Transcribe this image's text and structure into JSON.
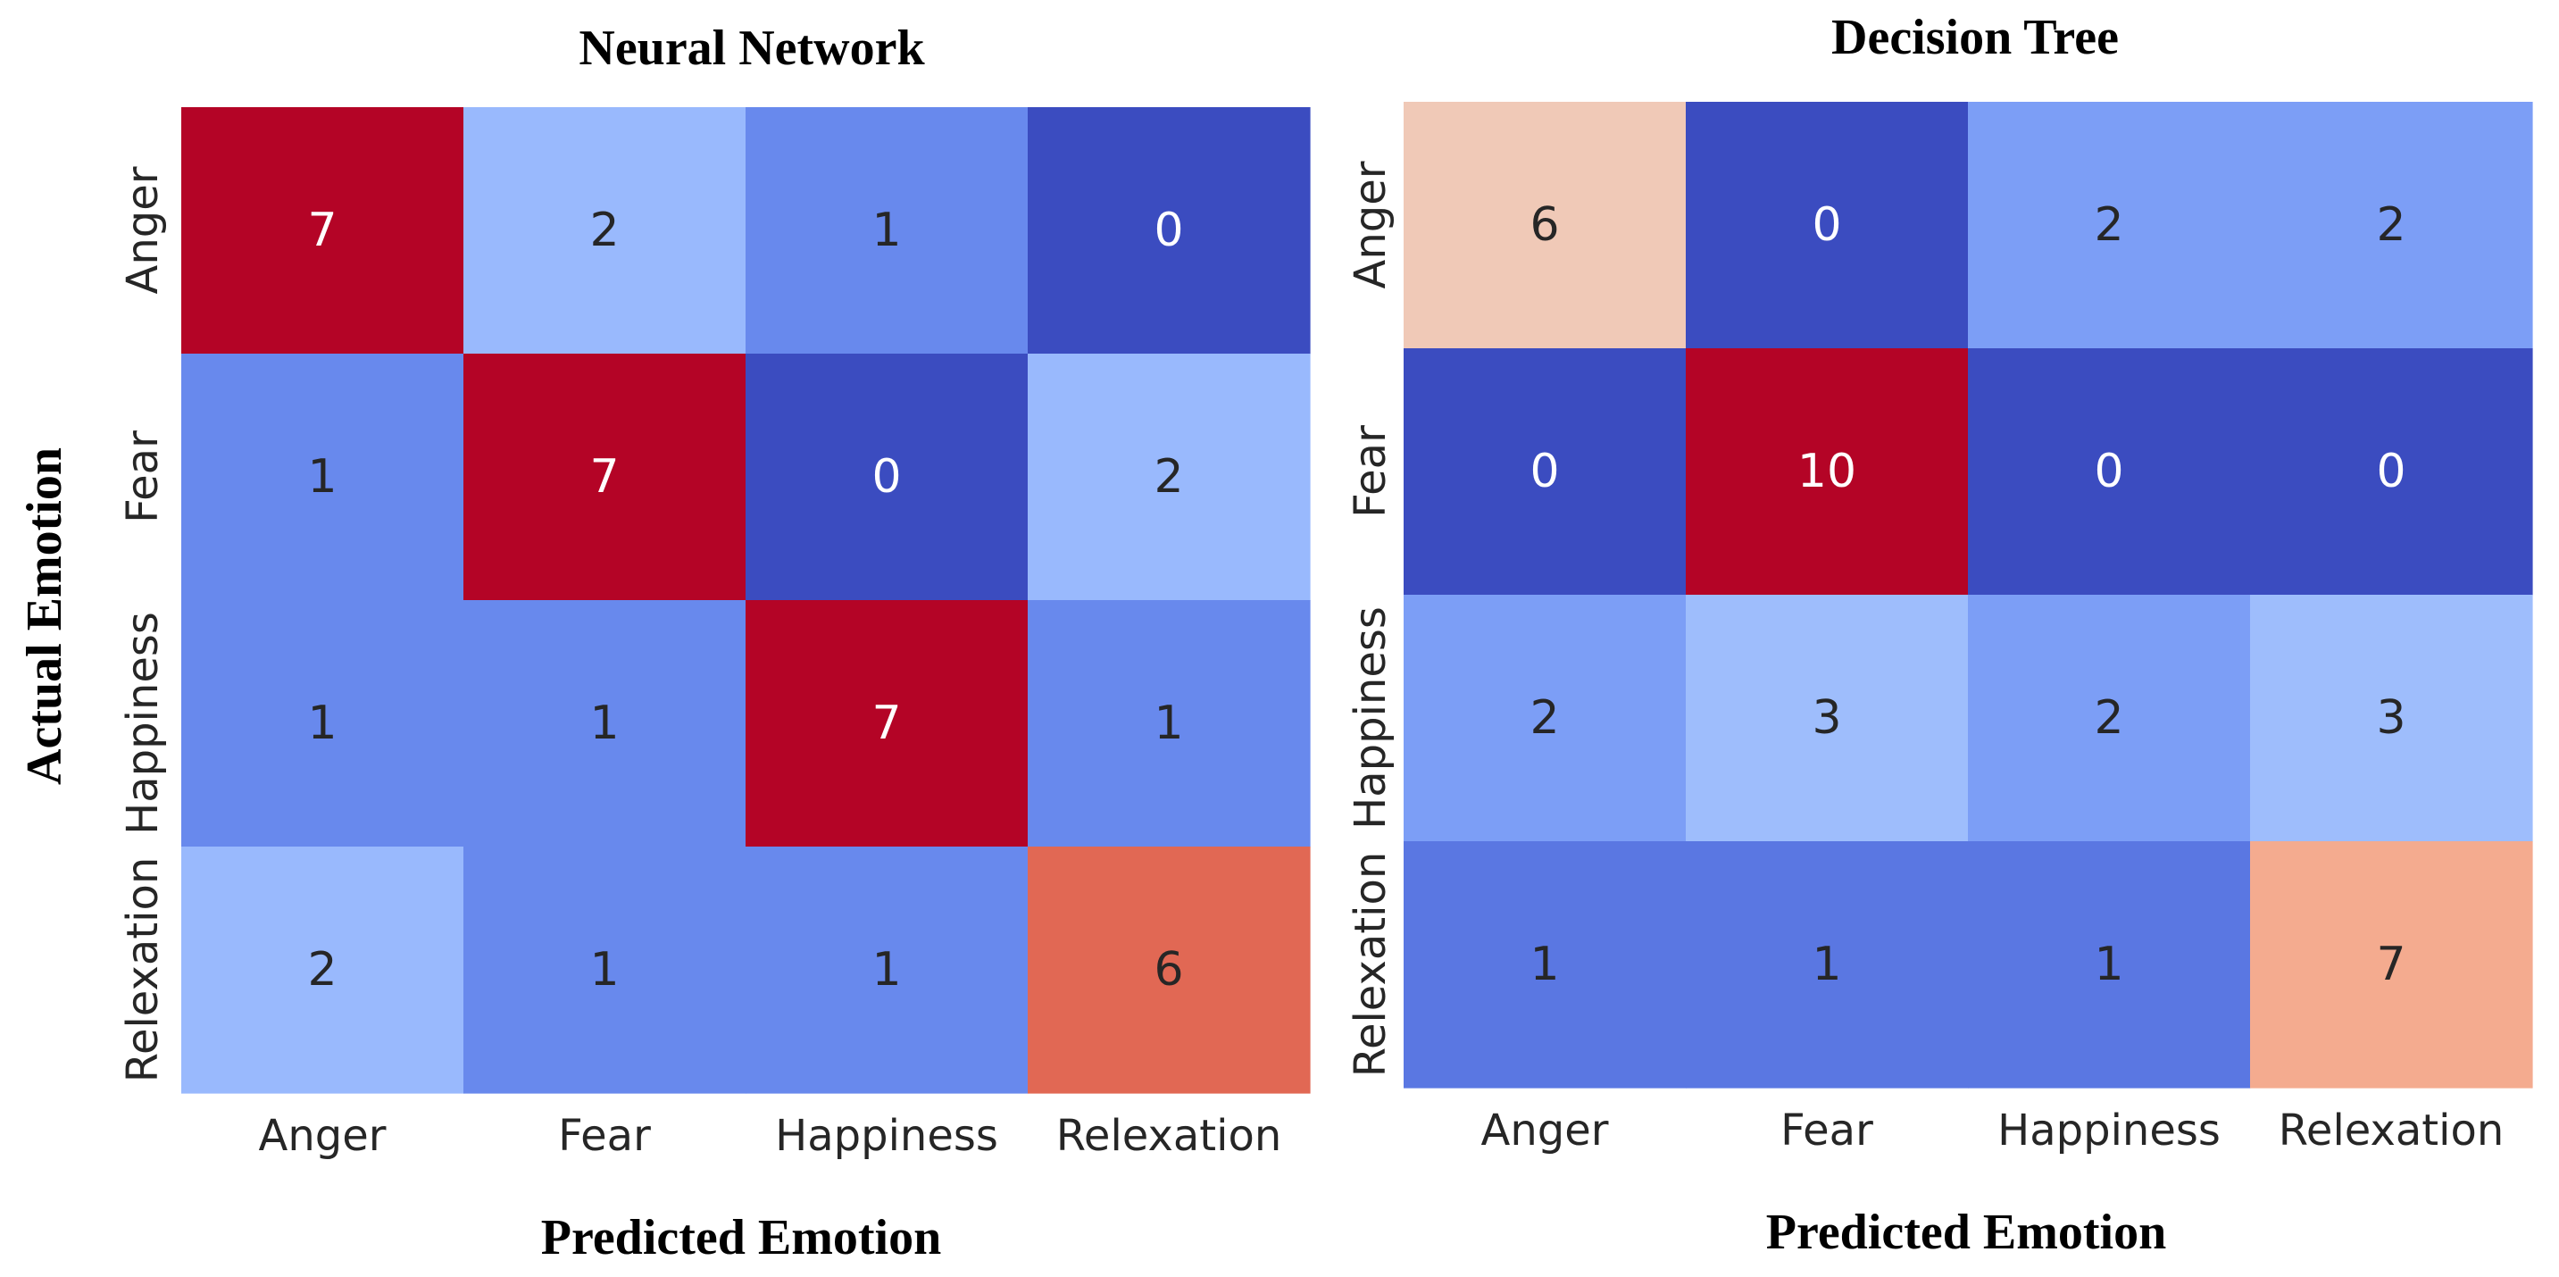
{
  "figure": {
    "shared_ylabel": "Actual Emotion"
  },
  "chart_data": [
    {
      "type": "heatmap",
      "title": "Neural Network",
      "xlabel": "Predicted Emotion",
      "ylabel": "Actual Emotion",
      "x_categories": [
        "Anger",
        "Fear",
        "Happiness",
        "Relexation"
      ],
      "y_categories": [
        "Anger",
        "Fear",
        "Happiness",
        "Relexation"
      ],
      "values": [
        [
          7,
          2,
          1,
          0
        ],
        [
          1,
          7,
          0,
          2
        ],
        [
          1,
          1,
          7,
          1
        ],
        [
          2,
          1,
          1,
          6
        ]
      ],
      "vmin": 0,
      "vmax": 7,
      "colormap": "coolwarm",
      "colorbar": false
    },
    {
      "type": "heatmap",
      "title": "Decision Tree",
      "xlabel": "Predicted Emotion",
      "ylabel": "",
      "x_categories": [
        "Anger",
        "Fear",
        "Happiness",
        "Relexation"
      ],
      "y_categories": [
        "Anger",
        "Fear",
        "Happiness",
        "Relexation"
      ],
      "values": [
        [
          6,
          0,
          2,
          2
        ],
        [
          0,
          10,
          0,
          0
        ],
        [
          2,
          3,
          2,
          3
        ],
        [
          1,
          1,
          1,
          7
        ]
      ],
      "vmin": 0,
      "vmax": 10,
      "colormap": "coolwarm",
      "colorbar": false
    }
  ]
}
